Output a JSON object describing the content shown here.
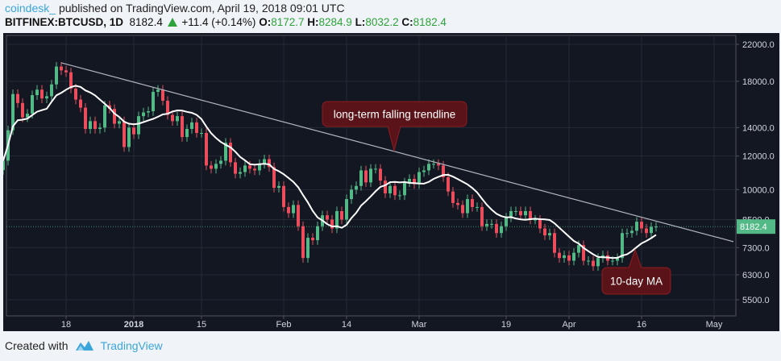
{
  "header": {
    "user": "coindesk_",
    "published": "published on TradingView.com, April 19, 2018 09:01 UTC",
    "symbol": "BITFINEX:BTCUSD, 1D",
    "last": "8182.4",
    "change": "+11.4 (+0.14%)",
    "o_label": "O:",
    "o": "8172.7",
    "h_label": "H:",
    "h": "8284.9",
    "l_label": "L:",
    "l": "8032.2",
    "c_label": "C:",
    "c": "8182.4"
  },
  "footer": {
    "created_with": "Created with",
    "brand": "TradingView"
  },
  "colors": {
    "background": "#131722",
    "up": "#53b987",
    "down": "#eb4d5c",
    "ma": "#ffffff",
    "trendline": "#b2b5be",
    "callout_fill": "#5a1419",
    "callout_border": "#8e1b20"
  },
  "chart_data": {
    "type": "candlestick",
    "symbol": "BITFINEX:BTCUSD",
    "interval": "1D",
    "y_scale": "log",
    "ylim": [
      5000,
      23500
    ],
    "grid": true,
    "y_ticks": [
      "22000.0",
      "18000.0",
      "14000.0",
      "12000.0",
      "10000.0",
      "8500.0",
      "7300.0",
      "6300.0",
      "5500.0"
    ],
    "x_ticks": [
      {
        "label": "18",
        "date": "2017-12-18",
        "bold": false
      },
      {
        "label": "2018",
        "date": "2018-01-01",
        "bold": true
      },
      {
        "label": "15",
        "date": "2018-01-15",
        "bold": false
      },
      {
        "label": "Feb",
        "date": "2018-02-01",
        "bold": false
      },
      {
        "label": "14",
        "date": "2018-02-14",
        "bold": false
      },
      {
        "label": "Mar",
        "date": "2018-03-01",
        "bold": false
      },
      {
        "label": "19",
        "date": "2018-03-19",
        "bold": false
      },
      {
        "label": "Apr",
        "date": "2018-04-01",
        "bold": false
      },
      {
        "label": "16",
        "date": "2018-04-16",
        "bold": false
      },
      {
        "label": "May",
        "date": "2018-05-01",
        "bold": false
      }
    ],
    "first_date": "2017-12-05",
    "close": [
      11700,
      13800,
      16800,
      16000,
      14800,
      15100,
      16700,
      17200,
      16400,
      16600,
      17700,
      19500,
      19100,
      18900,
      17300,
      16300,
      15600,
      13900,
      14500,
      13900,
      14000,
      15800,
      15500,
      14300,
      14500,
      12600,
      14000,
      13500,
      14900,
      15200,
      15300,
      17000,
      17200,
      16200,
      15000,
      14500,
      14900,
      13300,
      13900,
      14400,
      13600,
      13600,
      11400,
      11200,
      11500,
      11700,
      12900,
      11600,
      10900,
      11000,
      11400,
      11200,
      11100,
      11500,
      11800,
      11300,
      10100,
      10200,
      9100,
      8800,
      9200,
      8200,
      6900,
      7700,
      7600,
      8200,
      8700,
      8500,
      8100,
      8900,
      8500,
      9500,
      10000,
      10200,
      11100,
      10400,
      11200,
      11200,
      10500,
      9800,
      10200,
      9700,
      9700,
      10400,
      10600,
      10300,
      11000,
      11100,
      11500,
      11500,
      11400,
      10700,
      9900,
      9300,
      9200,
      8800,
      9500,
      9100,
      9100,
      8200,
      8300,
      8300,
      7900,
      8200,
      8600,
      8900,
      8900,
      8700,
      8900,
      8500,
      8500,
      8100,
      7800,
      7900,
      7100,
      6900,
      7000,
      6800,
      7100,
      7400,
      6800,
      6800,
      6600,
      6900,
      7000,
      6800,
      6800,
      6900,
      7900,
      7900,
      8000,
      8400,
      8100,
      7900,
      8170,
      8182.4
    ],
    "last_price": {
      "value": 8182.4,
      "label": "8182.4"
    },
    "moving_average": {
      "period": 10,
      "label": "10-day MA"
    },
    "trendline": {
      "points": [
        {
          "date": "2017-12-17",
          "value": 19900
        },
        {
          "date": "2018-05-05",
          "value": 7540
        }
      ],
      "label": "long-term falling trendline"
    },
    "annotations": [
      {
        "text": "long-term falling trendline",
        "target": "trendline"
      },
      {
        "text": "10-day MA",
        "target": "moving_average"
      }
    ]
  }
}
